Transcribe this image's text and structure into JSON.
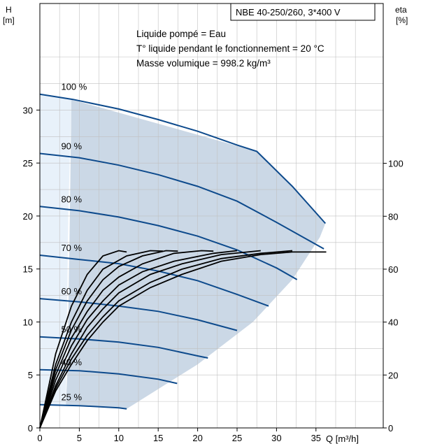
{
  "chart_data": {
    "type": "line",
    "title": "NBE 40-250/260, 3*400 V",
    "info_lines": [
      "Liquide pompé = Eau",
      "T° liquide pendant le fonctionnement = 20 °C",
      "Masse volumique = 998.2 kg/m³"
    ],
    "x_axis": {
      "label": "Q [m³/h]",
      "range": [
        0,
        42
      ],
      "ticks": [
        0,
        5,
        10,
        15,
        20,
        25,
        30,
        35
      ]
    },
    "y_axis_left": {
      "label_line1": "H",
      "label_line2": "[m]",
      "range": [
        0,
        36
      ],
      "ticks": [
        0,
        5,
        10,
        15,
        20,
        25,
        30
      ]
    },
    "y_axis_right": {
      "label_line1": "eta",
      "label_line2": "[%]",
      "range": [
        0,
        120
      ],
      "ticks": [
        0,
        20,
        40,
        60,
        80,
        100
      ]
    },
    "grid": true,
    "colors": {
      "head_curve": "#0d4a8c",
      "efficiency_curve": "#000000",
      "operating_area": "#cbd8e6",
      "light_area": "#e8f1fa",
      "grid": "#c0c0c0"
    },
    "head_curves": [
      {
        "speed": "100 %",
        "points": [
          [
            0,
            31.5
          ],
          [
            4.2,
            31.0
          ],
          [
            10,
            30.1
          ],
          [
            15,
            29.1
          ],
          [
            20,
            28.0
          ],
          [
            25,
            26.7
          ],
          [
            27.5,
            26.1
          ],
          [
            32,
            22.8
          ],
          [
            36.2,
            19.3
          ]
        ]
      },
      {
        "speed": "90 %",
        "points": [
          [
            0,
            25.9
          ],
          [
            5,
            25.5
          ],
          [
            10,
            24.8
          ],
          [
            15,
            23.9
          ],
          [
            20,
            22.8
          ],
          [
            25,
            21.4
          ],
          [
            30,
            19.4
          ],
          [
            36,
            16.9
          ]
        ]
      },
      {
        "speed": "80 %",
        "points": [
          [
            0,
            20.9
          ],
          [
            5,
            20.5
          ],
          [
            10,
            19.9
          ],
          [
            15,
            19.1
          ],
          [
            20,
            18.1
          ],
          [
            25,
            16.8
          ],
          [
            30,
            15.1
          ],
          [
            32.6,
            14.0
          ]
        ]
      },
      {
        "speed": "70 %",
        "points": [
          [
            0,
            16.3
          ],
          [
            5,
            15.9
          ],
          [
            10,
            15.5
          ],
          [
            15,
            14.8
          ],
          [
            20,
            13.9
          ],
          [
            25,
            12.6
          ],
          [
            29,
            11.5
          ]
        ]
      },
      {
        "speed": "60 %",
        "points": [
          [
            0,
            12.2
          ],
          [
            5,
            11.9
          ],
          [
            10,
            11.5
          ],
          [
            15,
            11.0
          ],
          [
            20,
            10.2
          ],
          [
            25,
            9.2
          ]
        ]
      },
      {
        "speed": "50 %",
        "points": [
          [
            0,
            8.6
          ],
          [
            5,
            8.4
          ],
          [
            10,
            8.1
          ],
          [
            15,
            7.6
          ],
          [
            20,
            6.8
          ],
          [
            21.3,
            6.6
          ]
        ]
      },
      {
        "speed": "40 %",
        "points": [
          [
            0,
            5.5
          ],
          [
            5,
            5.4
          ],
          [
            10,
            5.1
          ],
          [
            15,
            4.6
          ],
          [
            17.4,
            4.2
          ]
        ]
      },
      {
        "speed": "25 %",
        "points": [
          [
            0,
            2.2
          ],
          [
            5,
            2.1
          ],
          [
            10,
            1.9
          ],
          [
            11,
            1.8
          ]
        ]
      }
    ],
    "efficiency_curves": [
      {
        "points": [
          [
            0,
            0
          ],
          [
            2,
            28
          ],
          [
            4,
            46
          ],
          [
            6,
            58
          ],
          [
            8,
            65
          ],
          [
            10,
            67
          ],
          [
            11,
            66.5
          ]
        ]
      },
      {
        "points": [
          [
            0,
            0
          ],
          [
            2,
            24
          ],
          [
            4,
            40
          ],
          [
            6,
            52
          ],
          [
            8,
            60
          ],
          [
            11,
            65
          ],
          [
            14,
            67
          ],
          [
            15.6,
            66.8
          ]
        ]
      },
      {
        "points": [
          [
            0,
            0
          ],
          [
            2,
            22
          ],
          [
            4,
            37
          ],
          [
            6,
            48
          ],
          [
            8,
            56
          ],
          [
            10,
            61
          ],
          [
            13,
            65
          ],
          [
            16,
            67
          ],
          [
            17.5,
            66.8
          ]
        ]
      },
      {
        "points": [
          [
            0,
            0
          ],
          [
            2,
            20
          ],
          [
            4,
            34
          ],
          [
            6,
            44
          ],
          [
            8,
            52
          ],
          [
            10,
            57
          ],
          [
            13,
            62
          ],
          [
            17,
            66
          ],
          [
            20.5,
            67
          ],
          [
            22,
            66.8
          ]
        ]
      },
      {
        "points": [
          [
            0,
            0
          ],
          [
            2,
            18
          ],
          [
            4,
            31
          ],
          [
            6,
            41
          ],
          [
            8,
            48
          ],
          [
            10,
            54
          ],
          [
            13,
            59
          ],
          [
            17,
            63
          ],
          [
            22,
            66
          ],
          [
            25,
            67
          ]
        ]
      },
      {
        "points": [
          [
            0,
            0
          ],
          [
            2,
            16
          ],
          [
            4,
            28
          ],
          [
            6,
            38
          ],
          [
            8,
            45
          ],
          [
            10,
            51
          ],
          [
            14,
            58
          ],
          [
            18,
            62
          ],
          [
            23,
            65.5
          ],
          [
            28,
            67
          ]
        ]
      },
      {
        "points": [
          [
            0,
            0
          ],
          [
            2,
            15
          ],
          [
            4,
            26
          ],
          [
            6,
            35
          ],
          [
            8,
            42
          ],
          [
            10,
            48
          ],
          [
            14,
            55
          ],
          [
            18,
            60
          ],
          [
            23,
            64
          ],
          [
            28,
            66
          ],
          [
            32,
            67
          ]
        ]
      },
      {
        "points": [
          [
            0,
            0
          ],
          [
            2,
            14
          ],
          [
            4,
            24
          ],
          [
            6,
            33
          ],
          [
            8,
            40
          ],
          [
            10,
            46
          ],
          [
            14,
            53
          ],
          [
            18,
            58
          ],
          [
            23,
            63
          ],
          [
            28,
            65.5
          ],
          [
            32,
            66.5
          ],
          [
            36.3,
            66.5
          ]
        ]
      }
    ],
    "operating_area": {
      "dark": [
        [
          4,
          31
        ],
        [
          27.5,
          26.1
        ],
        [
          32,
          22.8
        ],
        [
          36.2,
          19.3
        ],
        [
          35.5,
          18.0
        ],
        [
          32,
          14.0
        ],
        [
          27,
          10.0
        ],
        [
          20,
          6.0
        ],
        [
          11,
          1.8
        ],
        [
          10.5,
          1.9
        ],
        [
          5,
          2.1
        ],
        [
          3.3,
          2.2
        ],
        [
          3.5,
          5.5
        ],
        [
          3.8,
          20
        ],
        [
          4,
          31
        ]
      ],
      "light": [
        [
          0,
          31.5
        ],
        [
          4,
          31
        ],
        [
          3.6,
          20
        ],
        [
          3.4,
          8.6
        ],
        [
          3.3,
          2.2
        ],
        [
          0,
          2.2
        ]
      ]
    }
  }
}
